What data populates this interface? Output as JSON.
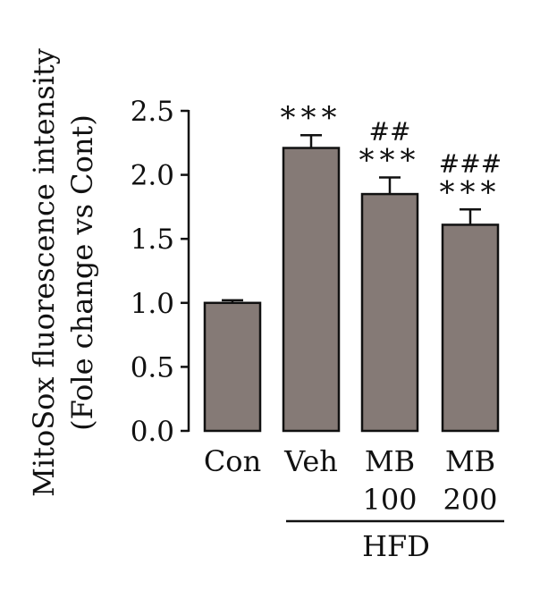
{
  "chart_data": {
    "type": "bar",
    "ylabel_line1": "MitoSox fluorescence intensity",
    "ylabel_line2": "(Fole change vs Cont)",
    "ylim": [
      0,
      2.5
    ],
    "yticks": [
      "0.0",
      "0.5",
      "1.0",
      "1.5",
      "2.0",
      "2.5"
    ],
    "categories": [
      {
        "line1": "Con",
        "line2": ""
      },
      {
        "line1": "Veh",
        "line2": ""
      },
      {
        "line1": "MB",
        "line2": "100"
      },
      {
        "line1": "MB",
        "line2": "200"
      }
    ],
    "values": [
      1.0,
      2.21,
      1.85,
      1.61
    ],
    "errors": [
      0.02,
      0.1,
      0.13,
      0.12
    ],
    "annotations": [
      {
        "stars": "",
        "hash": ""
      },
      {
        "stars": "***",
        "hash": ""
      },
      {
        "stars": "***",
        "hash": "##"
      },
      {
        "stars": "***",
        "hash": "###"
      }
    ],
    "group_label": "HFD",
    "group_categories": [
      1,
      3
    ],
    "bar_color": "#857a76",
    "grid": false
  }
}
